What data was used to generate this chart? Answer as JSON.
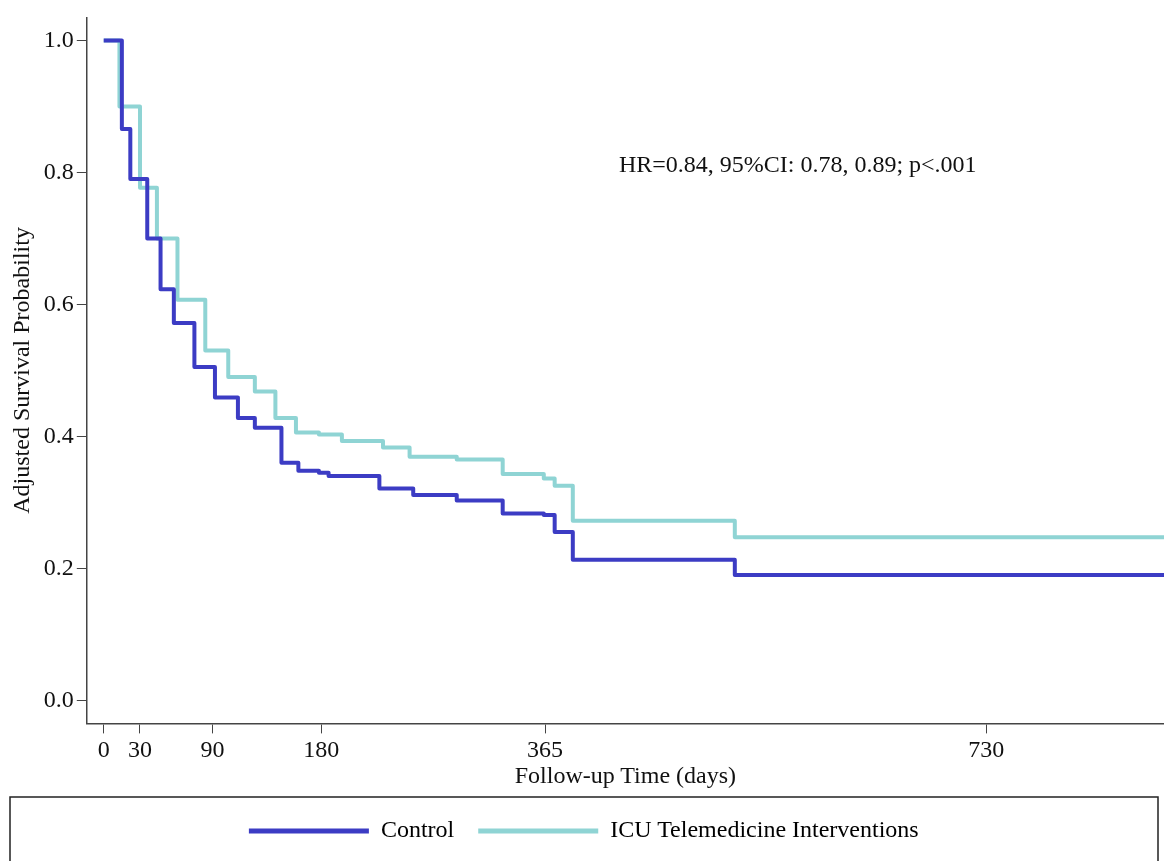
{
  "chart_data": {
    "type": "step",
    "xlabel": "Follow-up Time (days)",
    "ylabel": "Adjusted Survival Probability",
    "xlim": [
      -14,
      877
    ],
    "ylim": [
      -0.035,
      1.035
    ],
    "xticks": [
      0,
      30,
      90,
      180,
      365,
      730
    ],
    "yticks": [
      {
        "value": 0,
        "label": "0.0"
      },
      {
        "value": 0.2,
        "label": "0.2"
      },
      {
        "value": 0.4,
        "label": "0.4"
      },
      {
        "value": 0.6,
        "label": "0.6"
      },
      {
        "value": 0.8,
        "label": "0.8"
      },
      {
        "value": 1,
        "label": "1.0"
      }
    ],
    "grid": false,
    "legend": "bottom",
    "marker": "none",
    "line_style": "solid",
    "annotations": [
      "HR=0.84, 95%CI: 0.78, 0.89; p<.001"
    ],
    "series": [
      {
        "name": "Control",
        "color": "#3c3cc4",
        "x": [
          0,
          15,
          22,
          36,
          47,
          58,
          75,
          92,
          111,
          125,
          147,
          161,
          178,
          186,
          228,
          256,
          292,
          330,
          364,
          373,
          388,
          522,
          877
        ],
        "values": [
          1,
          0.866,
          0.79,
          0.7,
          0.623,
          0.572,
          0.505,
          0.459,
          0.428,
          0.413,
          0.36,
          0.348,
          0.345,
          0.34,
          0.321,
          0.311,
          0.303,
          0.283,
          0.281,
          0.255,
          0.213,
          0.19,
          0.19
        ]
      },
      {
        "name": "ICU Telemedicine Interventions",
        "color": "#8fd4d4",
        "x": [
          0,
          13,
          30,
          44,
          61,
          84,
          103,
          125,
          142,
          159,
          178,
          197,
          231,
          253,
          292,
          330,
          364,
          373,
          388,
          522,
          877
        ],
        "values": [
          1,
          0.9,
          0.777,
          0.7,
          0.607,
          0.53,
          0.49,
          0.468,
          0.428,
          0.406,
          0.403,
          0.393,
          0.383,
          0.369,
          0.365,
          0.343,
          0.336,
          0.325,
          0.272,
          0.247,
          0.247
        ]
      }
    ]
  }
}
